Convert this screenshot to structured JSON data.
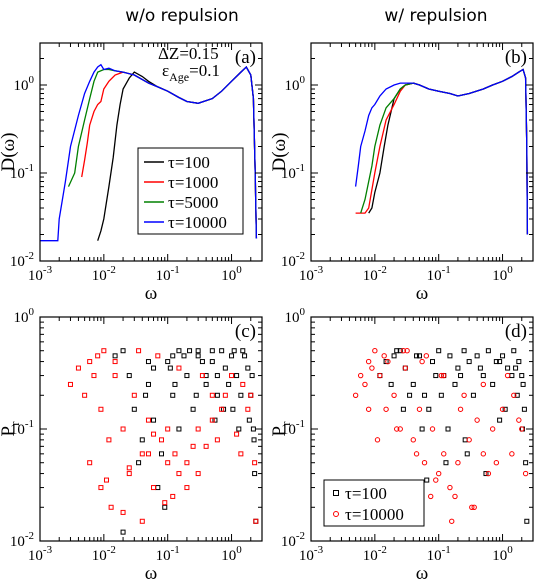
{
  "column_titles": [
    "w/o repulsion",
    "w/ repulsion"
  ],
  "colors": {
    "tau100": "#000000",
    "tau1000": "#ff0000",
    "tau5000": "#008000",
    "tau10000": "#0000ff",
    "scatter_black": "#000000",
    "scatter_red": "#ff0000"
  },
  "chart_data": [
    {
      "id": "a",
      "panel_label": "(a)",
      "type": "line",
      "xscale": "log",
      "yscale": "log",
      "xlim": [
        0.001,
        3
      ],
      "ylim": [
        0.01,
        3
      ],
      "xlabel": "ω",
      "ylabel": "D(ω)",
      "xticks": [
        "10-3",
        "10-2",
        "10-1",
        "100"
      ],
      "yticks": [
        "10-2",
        "10-1",
        "100"
      ],
      "annotations": [
        "ΔZ=0.15",
        "εAge=0.1"
      ],
      "legend": {
        "position": "center-right",
        "entries": [
          "τ=100",
          "τ=1000",
          "τ=5000",
          "τ=10000"
        ]
      },
      "series": [
        {
          "name": "τ=100",
          "color": "#000000",
          "x": [
            0.008,
            0.009,
            0.01,
            0.012,
            0.014,
            0.016,
            0.018,
            0.02,
            0.025,
            0.03,
            0.04,
            0.05,
            0.07,
            0.1,
            0.15,
            0.2,
            0.3,
            0.5,
            0.7,
            1.0,
            1.4,
            1.7,
            2.0,
            2.2,
            2.35,
            2.45
          ],
          "y": [
            0.017,
            0.022,
            0.03,
            0.07,
            0.15,
            0.35,
            0.6,
            0.9,
            1.2,
            1.4,
            1.25,
            1.1,
            0.95,
            0.85,
            0.72,
            0.65,
            0.62,
            0.7,
            0.85,
            1.1,
            1.4,
            1.6,
            1.3,
            0.7,
            0.1,
            0.018
          ]
        },
        {
          "name": "τ=1000",
          "color": "#ff0000",
          "x": [
            0.0045,
            0.005,
            0.0055,
            0.006,
            0.007,
            0.008,
            0.009,
            0.01,
            0.012,
            0.015,
            0.02,
            0.03,
            0.05,
            0.07,
            0.1,
            0.15,
            0.2,
            0.3,
            0.5,
            0.7,
            1.0,
            1.4,
            1.7,
            2.0,
            2.2,
            2.35,
            2.45
          ],
          "y": [
            0.09,
            0.14,
            0.22,
            0.35,
            0.5,
            0.6,
            0.65,
            0.9,
            1.1,
            1.3,
            1.4,
            1.3,
            1.05,
            0.95,
            0.85,
            0.72,
            0.65,
            0.62,
            0.7,
            0.85,
            1.1,
            1.4,
            1.6,
            1.3,
            0.7,
            0.1,
            0.018
          ]
        },
        {
          "name": "τ=5000",
          "color": "#008000",
          "x": [
            0.0028,
            0.0035,
            0.004,
            0.005,
            0.006,
            0.007,
            0.008,
            0.01,
            0.012,
            0.015,
            0.02,
            0.03,
            0.05,
            0.07,
            0.1,
            0.15,
            0.2,
            0.3,
            0.5,
            0.7,
            1.0,
            1.4,
            1.7,
            2.0,
            2.2,
            2.35,
            2.45
          ],
          "y": [
            0.07,
            0.1,
            0.2,
            0.4,
            0.7,
            1.1,
            1.4,
            1.5,
            1.5,
            1.45,
            1.4,
            1.3,
            1.05,
            0.95,
            0.85,
            0.72,
            0.65,
            0.62,
            0.7,
            0.85,
            1.1,
            1.4,
            1.6,
            1.3,
            0.7,
            0.1,
            0.018
          ]
        },
        {
          "name": "τ=10000",
          "color": "#0000ff",
          "x": [
            0.001,
            0.0019,
            0.002,
            0.0025,
            0.003,
            0.004,
            0.005,
            0.006,
            0.007,
            0.008,
            0.009,
            0.01,
            0.012,
            0.015,
            0.02,
            0.03,
            0.05,
            0.07,
            0.1,
            0.15,
            0.2,
            0.3,
            0.5,
            0.7,
            1.0,
            1.4,
            1.7,
            2.0,
            2.2,
            2.35,
            2.45
          ],
          "y": [
            0.017,
            0.017,
            0.03,
            0.08,
            0.2,
            0.45,
            0.8,
            1.1,
            1.4,
            1.6,
            1.7,
            1.5,
            1.55,
            1.45,
            1.4,
            1.3,
            1.05,
            0.95,
            0.85,
            0.72,
            0.65,
            0.62,
            0.7,
            0.85,
            1.1,
            1.4,
            1.6,
            1.3,
            0.7,
            0.1,
            0.018
          ]
        }
      ]
    },
    {
      "id": "b",
      "panel_label": "(b)",
      "type": "line",
      "xscale": "log",
      "yscale": "log",
      "xlim": [
        0.001,
        3
      ],
      "ylim": [
        0.01,
        3
      ],
      "xlabel": "ω",
      "ylabel": "D(ω)",
      "xticks": [
        "10-3",
        "10-2",
        "10-1",
        "100"
      ],
      "yticks": [
        "10-2",
        "10-1",
        "100"
      ],
      "series": [
        {
          "name": "τ=100",
          "color": "#000000",
          "x": [
            0.008,
            0.009,
            0.01,
            0.012,
            0.014,
            0.016,
            0.018,
            0.02,
            0.025,
            0.03,
            0.04,
            0.05,
            0.07,
            0.1,
            0.15,
            0.2,
            0.3,
            0.5,
            0.7,
            1.0,
            1.4,
            1.8,
            2.1,
            2.3,
            2.4,
            2.45
          ],
          "y": [
            0.035,
            0.04,
            0.06,
            0.1,
            0.2,
            0.35,
            0.5,
            0.7,
            0.9,
            1.0,
            1.05,
            1.0,
            0.9,
            0.85,
            0.8,
            0.75,
            0.8,
            0.9,
            1.0,
            1.1,
            1.25,
            1.4,
            1.5,
            1.2,
            0.2,
            0.02
          ]
        },
        {
          "name": "τ=1000",
          "color": "#ff0000",
          "x": [
            0.005,
            0.006,
            0.007,
            0.008,
            0.01,
            0.012,
            0.015,
            0.02,
            0.025,
            0.03,
            0.04,
            0.05,
            0.07,
            0.1,
            0.15,
            0.2,
            0.3,
            0.5,
            0.7,
            1.0,
            1.4,
            1.8,
            2.1,
            2.3,
            2.4,
            2.45
          ],
          "y": [
            0.035,
            0.035,
            0.035,
            0.04,
            0.1,
            0.2,
            0.4,
            0.6,
            0.85,
            1.0,
            1.05,
            1.0,
            0.9,
            0.85,
            0.8,
            0.75,
            0.8,
            0.9,
            1.0,
            1.1,
            1.25,
            1.4,
            1.5,
            1.2,
            0.2,
            0.02
          ]
        },
        {
          "name": "τ=5000",
          "color": "#008000",
          "x": [
            0.006,
            0.007,
            0.008,
            0.009,
            0.01,
            0.012,
            0.015,
            0.02,
            0.025,
            0.03,
            0.04,
            0.05,
            0.07,
            0.1,
            0.15,
            0.2,
            0.3,
            0.5,
            0.7,
            1.0,
            1.4,
            1.8,
            2.1,
            2.3,
            2.4,
            2.45
          ],
          "y": [
            0.035,
            0.05,
            0.08,
            0.12,
            0.2,
            0.35,
            0.55,
            0.7,
            0.9,
            1.0,
            1.05,
            1.0,
            0.9,
            0.85,
            0.8,
            0.75,
            0.8,
            0.9,
            1.0,
            1.1,
            1.25,
            1.4,
            1.5,
            1.2,
            0.2,
            0.02
          ]
        },
        {
          "name": "τ=10000",
          "color": "#0000ff",
          "x": [
            0.005,
            0.0055,
            0.006,
            0.007,
            0.008,
            0.009,
            0.01,
            0.012,
            0.015,
            0.02,
            0.025,
            0.03,
            0.04,
            0.05,
            0.07,
            0.1,
            0.15,
            0.2,
            0.3,
            0.5,
            0.7,
            1.0,
            1.4,
            1.8,
            2.1,
            2.3,
            2.4,
            2.45
          ],
          "y": [
            0.07,
            0.12,
            0.2,
            0.3,
            0.45,
            0.55,
            0.6,
            0.75,
            0.9,
            1.0,
            1.05,
            1.05,
            1.05,
            1.0,
            0.9,
            0.85,
            0.8,
            0.75,
            0.8,
            0.9,
            1.0,
            1.1,
            1.25,
            1.4,
            1.5,
            1.2,
            0.2,
            0.02
          ]
        }
      ]
    },
    {
      "id": "c",
      "panel_label": "(c)",
      "type": "scatter",
      "xscale": "log",
      "yscale": "log",
      "xlim": [
        0.001,
        3
      ],
      "ylim": [
        0.01,
        1
      ],
      "xlabel": "ω",
      "ylabel": "Pr",
      "xticks": [
        "10-3",
        "10-2",
        "10-1",
        "100"
      ],
      "yticks": [
        "10-2",
        "10-1",
        "100"
      ],
      "series": [
        {
          "name": "τ=100",
          "color": "#000000",
          "marker": "square",
          "x": [
            0.015,
            0.02,
            0.025,
            0.03,
            0.04,
            0.05,
            0.06,
            0.08,
            0.1,
            0.12,
            0.15,
            0.2,
            0.25,
            0.3,
            0.4,
            0.5,
            0.6,
            0.8,
            1.0,
            1.2,
            1.5,
            1.8,
            2.0,
            2.2,
            2.3,
            2.4,
            0.035,
            0.07,
            0.09,
            0.15,
            0.3,
            0.5,
            0.7,
            1.1,
            1.6,
            0.045,
            0.11,
            0.18,
            0.35,
            0.6,
            0.9,
            1.4,
            2.1,
            0.06,
            0.12,
            0.22,
            0.4,
            0.75,
            1.3,
            2.25,
            0.02,
            0.05,
            0.13,
            0.28,
            0.55,
            1.05,
            1.9
          ],
          "y": [
            0.45,
            0.5,
            0.3,
            0.15,
            0.08,
            0.25,
            0.12,
            0.06,
            0.4,
            0.2,
            0.1,
            0.3,
            0.15,
            0.5,
            0.25,
            0.4,
            0.2,
            0.35,
            0.45,
            0.3,
            0.5,
            0.35,
            0.2,
            0.1,
            0.04,
            0.015,
            0.05,
            0.03,
            0.02,
            0.5,
            0.45,
            0.5,
            0.5,
            0.5,
            0.45,
            0.2,
            0.35,
            0.45,
            0.4,
            0.3,
            0.25,
            0.2,
            0.3,
            0.35,
            0.45,
            0.5,
            0.3,
            0.15,
            0.1,
            0.08,
            0.012,
            0.4,
            0.25,
            0.2,
            0.12,
            0.15,
            0.12
          ]
        },
        {
          "name": "τ=10000",
          "color": "#ff0000",
          "marker": "square",
          "x": [
            0.003,
            0.004,
            0.005,
            0.006,
            0.007,
            0.008,
            0.009,
            0.01,
            0.012,
            0.015,
            0.02,
            0.025,
            0.03,
            0.04,
            0.05,
            0.06,
            0.08,
            0.1,
            0.12,
            0.15,
            0.2,
            0.3,
            0.4,
            0.5,
            0.7,
            1.0,
            1.5,
            2.0,
            2.3,
            2.4,
            0.009,
            0.02,
            0.05,
            0.1,
            0.2,
            0.5,
            1.2,
            0.006,
            0.015,
            0.035,
            0.07,
            0.15,
            0.35,
            0.8,
            1.8,
            0.011,
            0.025,
            0.06,
            0.13,
            0.3,
            0.6,
            1.4,
            0.013,
            0.04,
            0.09,
            0.25
          ],
          "y": [
            0.25,
            0.35,
            0.2,
            0.4,
            0.3,
            0.45,
            0.15,
            0.5,
            0.08,
            0.3,
            0.1,
            0.04,
            0.2,
            0.06,
            0.12,
            0.03,
            0.08,
            0.05,
            0.025,
            0.04,
            0.03,
            0.1,
            0.07,
            0.2,
            0.15,
            0.3,
            0.25,
            0.2,
            0.05,
            0.015,
            0.03,
            0.018,
            0.06,
            0.1,
            0.05,
            0.12,
            0.09,
            0.05,
            0.4,
            0.5,
            0.45,
            0.35,
            0.3,
            0.2,
            0.15,
            0.035,
            0.045,
            0.09,
            0.06,
            0.04,
            0.08,
            0.06,
            0.02,
            0.015,
            0.022,
            0.07
          ]
        }
      ]
    },
    {
      "id": "d",
      "panel_label": "(d)",
      "type": "scatter",
      "xscale": "log",
      "yscale": "log",
      "xlim": [
        0.001,
        3
      ],
      "ylim": [
        0.01,
        1
      ],
      "xlabel": "ω",
      "ylabel": "Pr",
      "xticks": [
        "10-3",
        "10-2",
        "10-1",
        "100"
      ],
      "yticks": [
        "10-2",
        "10-1",
        "100"
      ],
      "legend": {
        "position": "bottom-left",
        "entries": [
          "τ=100",
          "τ=10000"
        ]
      },
      "series": [
        {
          "name": "τ=100",
          "color": "#000000",
          "marker": "square",
          "x": [
            0.012,
            0.015,
            0.02,
            0.025,
            0.03,
            0.04,
            0.05,
            0.06,
            0.08,
            0.1,
            0.12,
            0.15,
            0.2,
            0.25,
            0.3,
            0.4,
            0.5,
            0.6,
            0.8,
            1.0,
            1.2,
            1.5,
            1.8,
            2.0,
            2.2,
            2.3,
            2.4,
            0.018,
            0.035,
            0.07,
            0.14,
            0.28,
            0.55,
            1.1,
            1.7,
            0.022,
            0.045,
            0.09,
            0.18,
            0.35,
            0.7,
            1.4,
            2.1,
            0.028,
            0.055,
            0.11,
            0.22,
            0.45,
            0.9,
            1.6,
            0.065,
            0.13,
            0.26,
            0.9,
            2.05
          ],
          "y": [
            0.3,
            0.4,
            0.45,
            0.5,
            0.35,
            0.25,
            0.45,
            0.2,
            0.4,
            0.5,
            0.3,
            0.45,
            0.35,
            0.5,
            0.4,
            0.45,
            0.3,
            0.5,
            0.4,
            0.45,
            0.35,
            0.5,
            0.4,
            0.3,
            0.15,
            0.05,
            0.015,
            0.25,
            0.2,
            0.15,
            0.1,
            0.06,
            0.04,
            0.15,
            0.2,
            0.5,
            0.45,
            0.3,
            0.25,
            0.2,
            0.25,
            0.3,
            0.25,
            0.15,
            0.1,
            0.2,
            0.3,
            0.35,
            0.4,
            0.35,
            0.035,
            0.05,
            0.08,
            0.12,
            0.1
          ]
        },
        {
          "name": "τ=10000",
          "color": "#ff0000",
          "marker": "circle",
          "x": [
            0.005,
            0.006,
            0.007,
            0.008,
            0.009,
            0.01,
            0.012,
            0.015,
            0.02,
            0.025,
            0.03,
            0.04,
            0.05,
            0.06,
            0.08,
            0.1,
            0.12,
            0.15,
            0.2,
            0.3,
            0.4,
            0.5,
            0.7,
            1.0,
            1.5,
            2.0,
            2.3,
            0.008,
            0.016,
            0.032,
            0.064,
            0.12,
            0.25,
            0.5,
            1.2,
            0.011,
            0.022,
            0.045,
            0.09,
            0.18,
            0.36,
            0.8,
            1.8,
            0.014,
            0.028,
            0.055,
            0.11,
            0.22,
            0.6,
            1.4,
            0.04,
            0.075,
            0.16,
            0.33
          ],
          "y": [
            0.2,
            0.3,
            0.25,
            0.4,
            0.35,
            0.5,
            0.3,
            0.15,
            0.2,
            0.1,
            0.35,
            0.08,
            0.15,
            0.05,
            0.1,
            0.04,
            0.06,
            0.03,
            0.05,
            0.08,
            0.12,
            0.06,
            0.1,
            0.15,
            0.2,
            0.1,
            0.04,
            0.15,
            0.4,
            0.5,
            0.45,
            0.3,
            0.2,
            0.25,
            0.3,
            0.08,
            0.1,
            0.06,
            0.035,
            0.025,
            0.02,
            0.05,
            0.12,
            0.45,
            0.5,
            0.4,
            0.3,
            0.15,
            0.04,
            0.06,
            0.03,
            0.025,
            0.015,
            0.02
          ]
        }
      ]
    }
  ]
}
